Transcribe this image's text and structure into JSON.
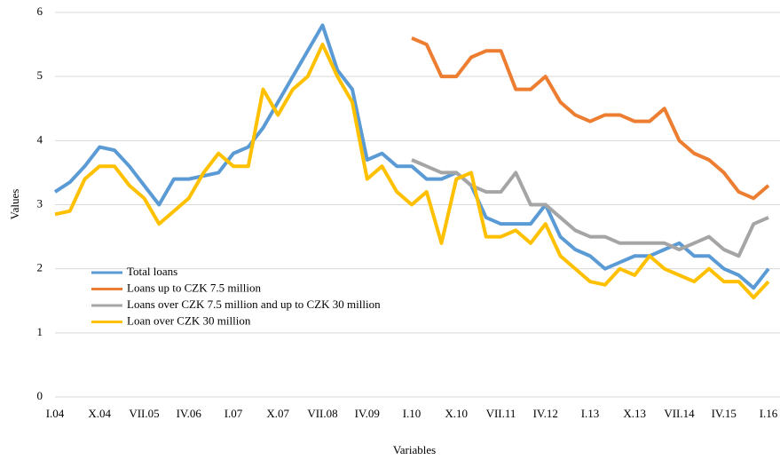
{
  "chart_data": {
    "type": "line",
    "y_label": "Values",
    "x_label": "Variables",
    "categories": [
      "I.04",
      null,
      null,
      "X.04",
      null,
      null,
      "VII.05",
      null,
      null,
      "IV.06",
      null,
      null,
      "I.07",
      null,
      null,
      "X.07",
      null,
      null,
      "VII.08",
      null,
      null,
      "IV.09",
      null,
      null,
      "I.10",
      null,
      null,
      "X.10",
      null,
      null,
      "VII.11",
      null,
      null,
      "IV.12",
      null,
      null,
      "I.13",
      null,
      null,
      "X.13",
      null,
      null,
      "VII.14",
      null,
      null,
      "IV.15",
      null,
      null,
      "I.16"
    ],
    "series": [
      {
        "name": "Total loans",
        "color": "#5b9bd5",
        "values": [
          3.2,
          3.35,
          3.6,
          3.9,
          3.85,
          3.6,
          3.3,
          3.0,
          3.4,
          3.4,
          3.45,
          3.5,
          3.8,
          3.9,
          4.2,
          4.6,
          5.0,
          5.4,
          5.8,
          5.1,
          4.8,
          3.7,
          3.8,
          3.6,
          3.6,
          3.4,
          3.4,
          3.5,
          3.3,
          2.8,
          2.7,
          2.7,
          2.7,
          3.0,
          2.5,
          2.3,
          2.2,
          2.0,
          2.1,
          2.2,
          2.2,
          2.3,
          2.4,
          2.2,
          2.2,
          2.0,
          1.9,
          1.7,
          2.0
        ]
      },
      {
        "name": "Loans up to CZK 7.5 million",
        "color": "#ed7d31",
        "values": [
          null,
          null,
          null,
          null,
          null,
          null,
          null,
          null,
          null,
          null,
          null,
          null,
          null,
          null,
          null,
          null,
          null,
          null,
          null,
          null,
          null,
          null,
          null,
          null,
          5.6,
          5.5,
          5.0,
          5.0,
          5.3,
          5.4,
          5.4,
          4.8,
          4.8,
          5.0,
          4.6,
          4.4,
          4.3,
          4.4,
          4.4,
          4.3,
          4.3,
          4.5,
          4.0,
          3.8,
          3.7,
          3.5,
          3.2,
          3.1,
          3.3
        ]
      },
      {
        "name": "Loans over CZK 7.5 million and up to CZK 30 million",
        "color": "#a5a5a5",
        "values": [
          null,
          null,
          null,
          null,
          null,
          null,
          null,
          null,
          null,
          null,
          null,
          null,
          null,
          null,
          null,
          null,
          null,
          null,
          null,
          null,
          null,
          null,
          null,
          null,
          3.7,
          3.6,
          3.5,
          3.5,
          3.3,
          3.2,
          3.2,
          3.5,
          3.0,
          3.0,
          2.8,
          2.6,
          2.5,
          2.5,
          2.4,
          2.4,
          2.4,
          2.4,
          2.3,
          2.4,
          2.5,
          2.3,
          2.2,
          2.7,
          2.8
        ]
      },
      {
        "name": "Loan over CZK 30 million",
        "color": "#ffc000",
        "values": [
          2.85,
          2.9,
          3.4,
          3.6,
          3.6,
          3.3,
          3.1,
          2.7,
          2.9,
          3.1,
          3.5,
          3.8,
          3.6,
          3.6,
          4.8,
          4.4,
          4.8,
          5.0,
          5.5,
          5.0,
          4.6,
          3.4,
          3.6,
          3.2,
          3.0,
          3.2,
          2.4,
          3.4,
          3.5,
          2.5,
          2.5,
          2.6,
          2.4,
          2.7,
          2.2,
          2.0,
          1.8,
          1.75,
          2.0,
          1.9,
          2.2,
          2.0,
          1.9,
          1.8,
          2.0,
          1.8,
          1.8,
          1.55,
          1.8
        ]
      }
    ],
    "ylim": [
      0,
      6
    ],
    "yticks": [
      0,
      1,
      2,
      3,
      4,
      5,
      6
    ],
    "grid": true,
    "legend": "lower left"
  }
}
